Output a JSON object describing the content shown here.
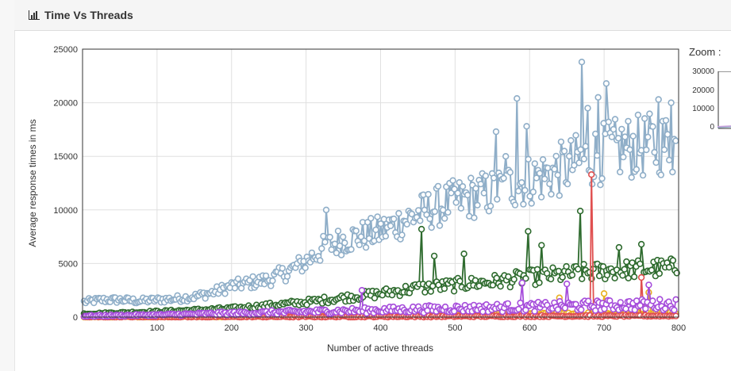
{
  "panel": {
    "title": "Time Vs Threads",
    "icon": "bar-chart-icon"
  },
  "zoom": {
    "label": "Zoom :",
    "ticks": [
      "30000",
      "20000",
      "10000",
      "0"
    ]
  },
  "chart_data": {
    "type": "line",
    "xlabel": "Number of active threads",
    "ylabel": "Average response times in ms",
    "xlim": [
      0,
      800
    ],
    "ylim": [
      0,
      25000
    ],
    "xticks": [
      100,
      200,
      300,
      400,
      500,
      600,
      700,
      800
    ],
    "yticks": [
      0,
      5000,
      10000,
      15000,
      20000,
      25000
    ],
    "grid": true,
    "legend": "none",
    "series": [
      {
        "color": "#8faec8",
        "x": [
          0,
          25,
          50,
          75,
          100,
          125,
          150,
          175,
          200,
          225,
          250,
          275,
          300,
          325,
          350,
          375,
          400,
          425,
          450,
          475,
          500,
          525,
          550,
          575,
          600,
          625,
          650,
          675,
          700,
          725,
          750,
          775,
          800
        ],
        "values": [
          1400,
          1600,
          1600,
          1500,
          1600,
          1700,
          1900,
          2300,
          2900,
          3200,
          3500,
          4200,
          5200,
          6500,
          7200,
          7600,
          8000,
          8800,
          9600,
          10300,
          10800,
          11300,
          11600,
          12300,
          12800,
          13300,
          14000,
          14800,
          15300,
          15800,
          15900,
          16200,
          16000
        ],
        "peaks": [
          [
            327,
            10000
          ],
          [
            459,
            10000
          ],
          [
            555,
            17300
          ],
          [
            568,
            15000
          ],
          [
            583,
            20400
          ],
          [
            596,
            17800
          ],
          [
            670,
            23800
          ],
          [
            678,
            19500
          ],
          [
            692,
            20500
          ],
          [
            703,
            21800
          ],
          [
            773,
            20300
          ],
          [
            790,
            20000
          ]
        ]
      },
      {
        "color": "#2e6b2e",
        "x": [
          0,
          50,
          100,
          150,
          200,
          250,
          300,
          350,
          400,
          450,
          500,
          550,
          600,
          650,
          700,
          750,
          800
        ],
        "values": [
          300,
          400,
          500,
          650,
          800,
          1100,
          1400,
          1800,
          2200,
          2700,
          3000,
          3300,
          3700,
          4000,
          4300,
          4500,
          4600
        ],
        "peaks": [
          [
            455,
            8200
          ],
          [
            472,
            5700
          ],
          [
            512,
            5900
          ],
          [
            598,
            8000
          ],
          [
            616,
            6700
          ],
          [
            668,
            9900
          ],
          [
            720,
            6500
          ],
          [
            750,
            6800
          ]
        ]
      },
      {
        "color": "#a64ddb",
        "x": [
          0,
          100,
          200,
          300,
          400,
          500,
          600,
          700,
          800
        ],
        "values": [
          100,
          200,
          350,
          500,
          650,
          800,
          950,
          1100,
          1200
        ],
        "peaks": [
          [
            375,
            2500
          ],
          [
            590,
            3200
          ],
          [
            650,
            3100
          ],
          [
            760,
            3000
          ]
        ]
      },
      {
        "color": "#e8b020",
        "x": [
          0,
          200,
          400,
          600,
          800
        ],
        "values": [
          20,
          80,
          150,
          250,
          350
        ],
        "peaks": [
          [
            640,
            1800
          ],
          [
            700,
            2200
          ],
          [
            760,
            2300
          ]
        ]
      },
      {
        "color": "#e05050",
        "x": [
          0,
          400,
          800
        ],
        "values": [
          10,
          60,
          120
        ],
        "peaks": [
          [
            683,
            13300
          ],
          [
            750,
            3700
          ]
        ]
      }
    ]
  }
}
